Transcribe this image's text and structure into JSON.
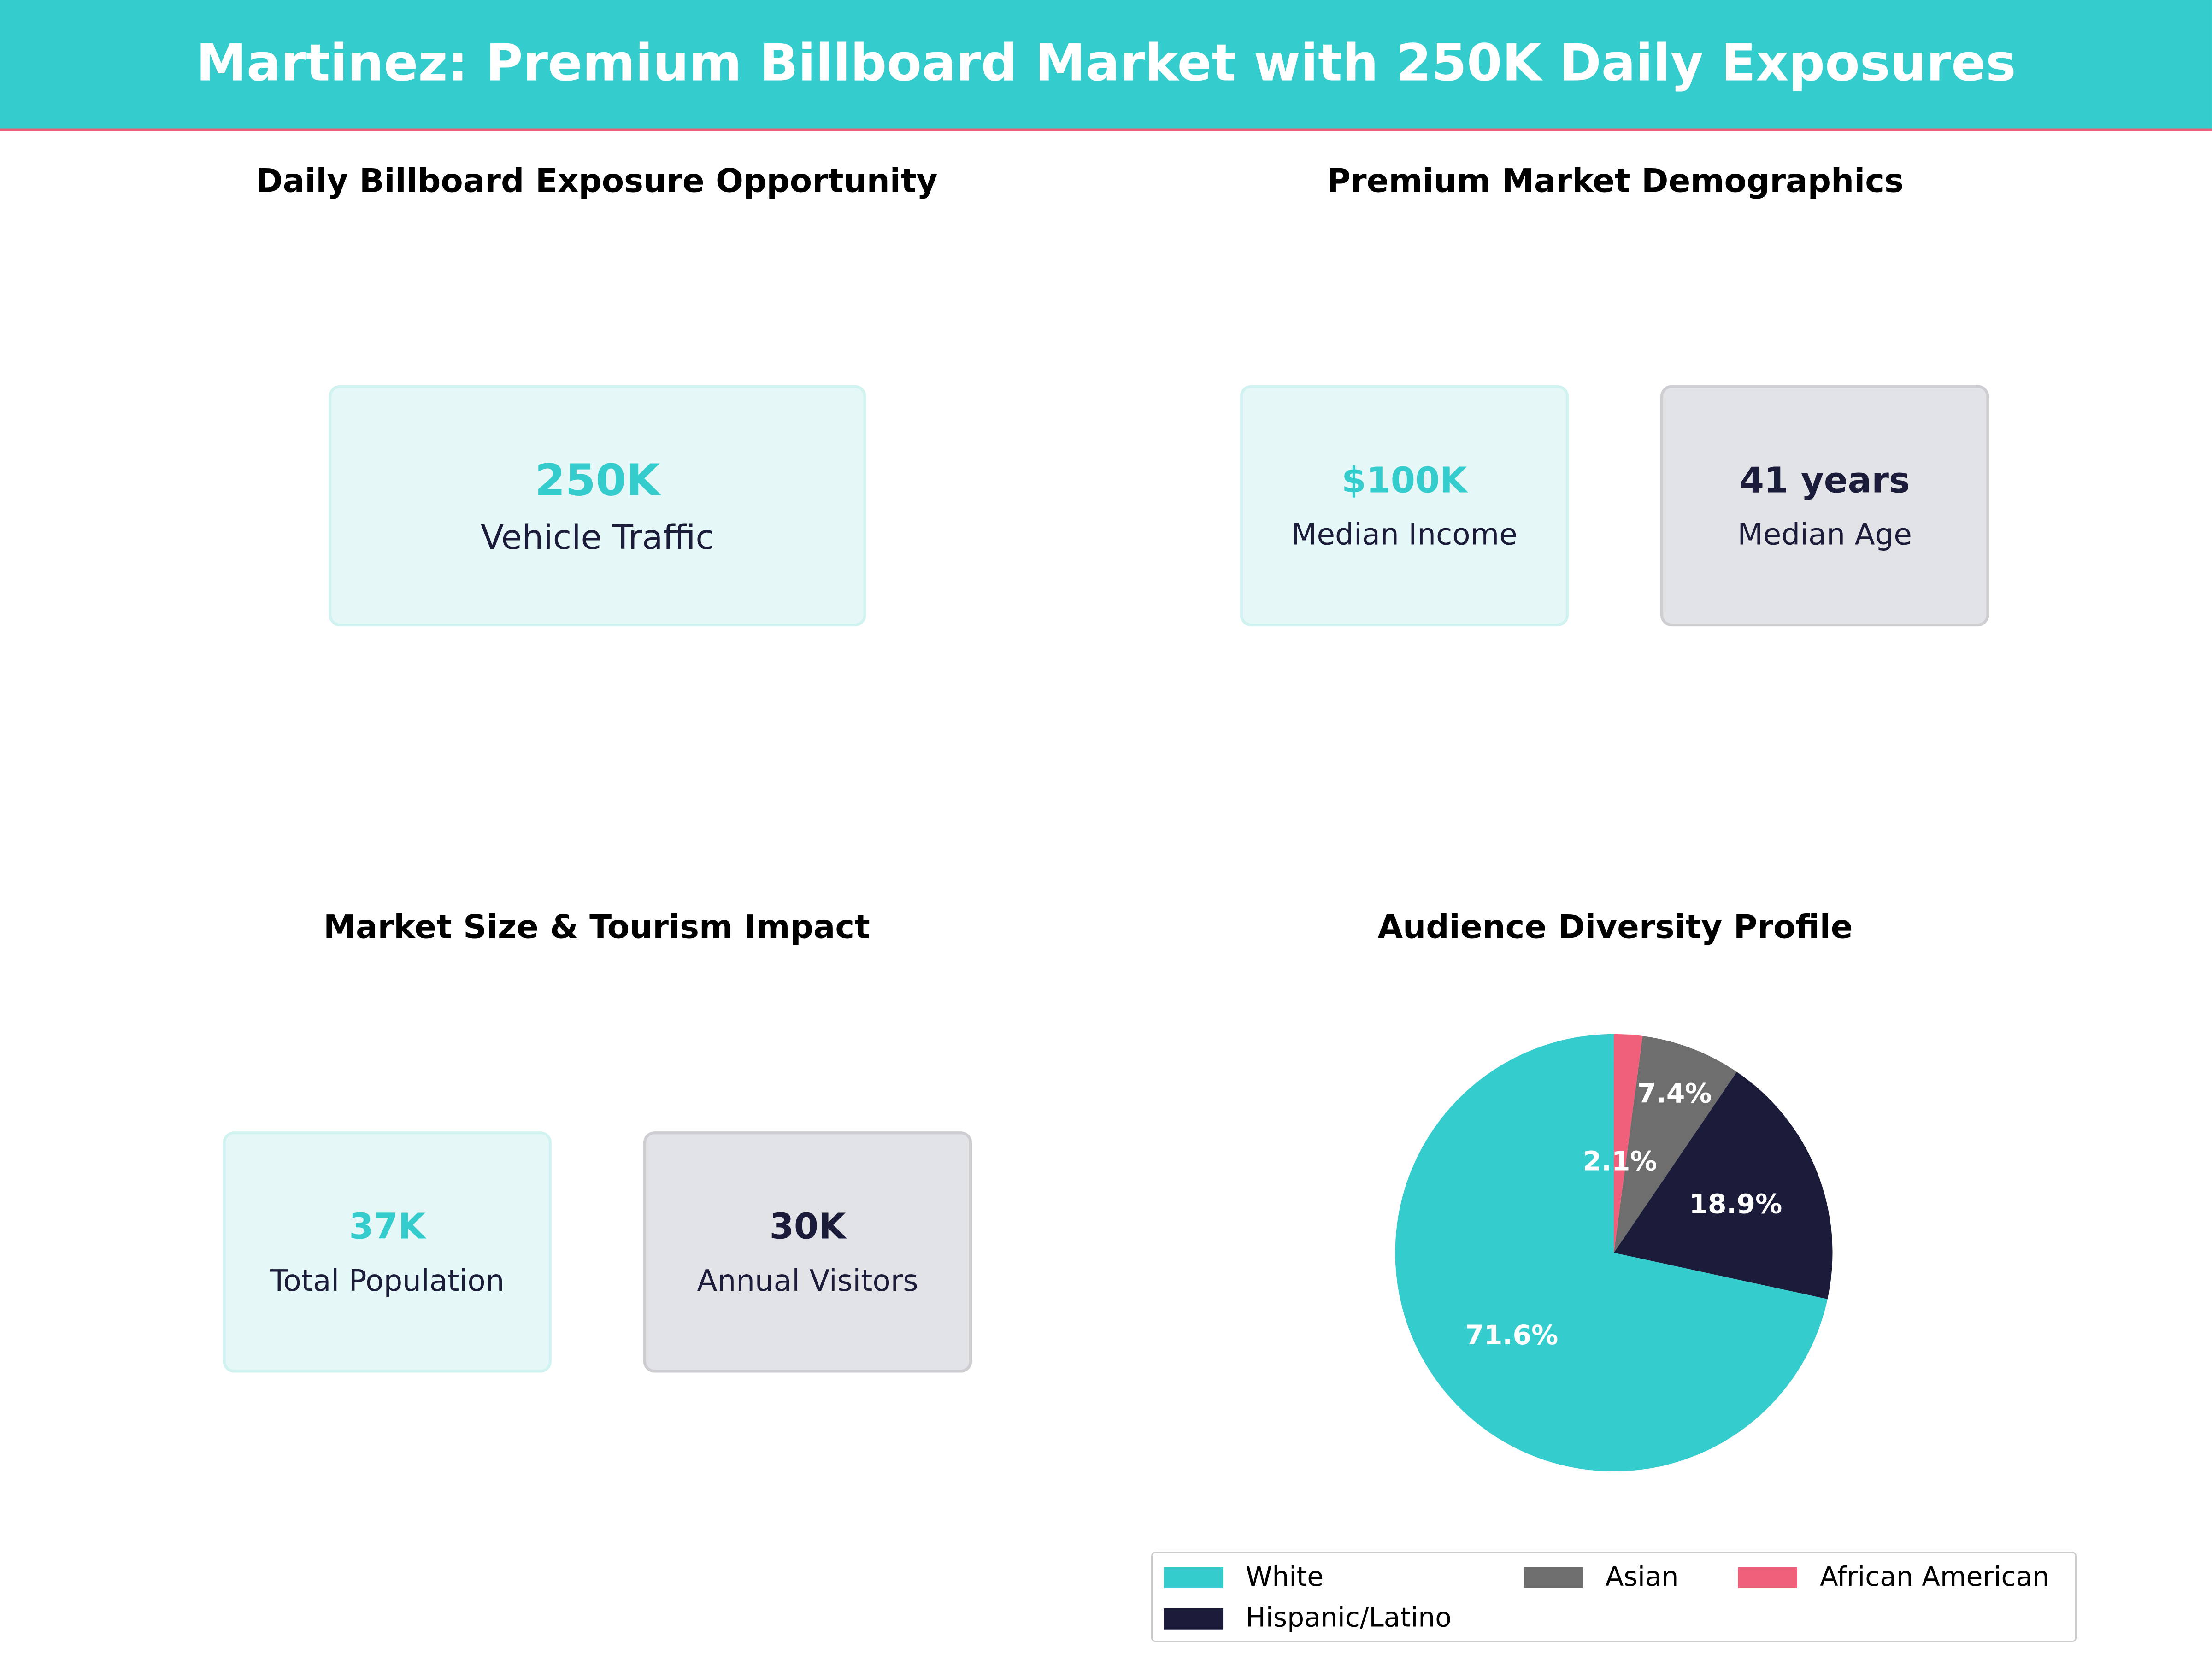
{
  "header": {
    "title": "Martinez: Premium Billboard Market with 250K Daily Exposures"
  },
  "panels": {
    "exposure": {
      "title": "Daily Billboard Exposure Opportunity",
      "cards": [
        {
          "value": "250K",
          "label": "Vehicle Traffic"
        }
      ]
    },
    "demographics": {
      "title": "Premium Market Demographics",
      "cards": [
        {
          "value": "$100K",
          "label": "Median Income"
        },
        {
          "value": "41 years",
          "label": "Median Age"
        }
      ]
    },
    "market": {
      "title": "Market Size & Tourism Impact",
      "cards": [
        {
          "value": "37K",
          "label": "Total Population"
        },
        {
          "value": "30K",
          "label": "Annual Visitors"
        }
      ]
    }
  },
  "colors": {
    "accent": "#34CCCC",
    "navy": "#1A1C3A",
    "grey": "#6E6E6E",
    "pink": "#F0607A"
  },
  "chart_data": {
    "type": "pie",
    "title": "Audience Diversity Profile",
    "categories": [
      "White",
      "Hispanic/Latino",
      "Asian",
      "African American"
    ],
    "values": [
      71.6,
      18.9,
      7.4,
      2.1
    ],
    "labels": [
      "71.6%",
      "18.9%",
      "7.4%",
      "2.1%"
    ],
    "colors": [
      "#34CCCC",
      "#1A1C3A",
      "#6E6E6E",
      "#F0607A"
    ],
    "start_angle": 90,
    "direction": "counterclockwise",
    "legend_placement": "bottom"
  }
}
